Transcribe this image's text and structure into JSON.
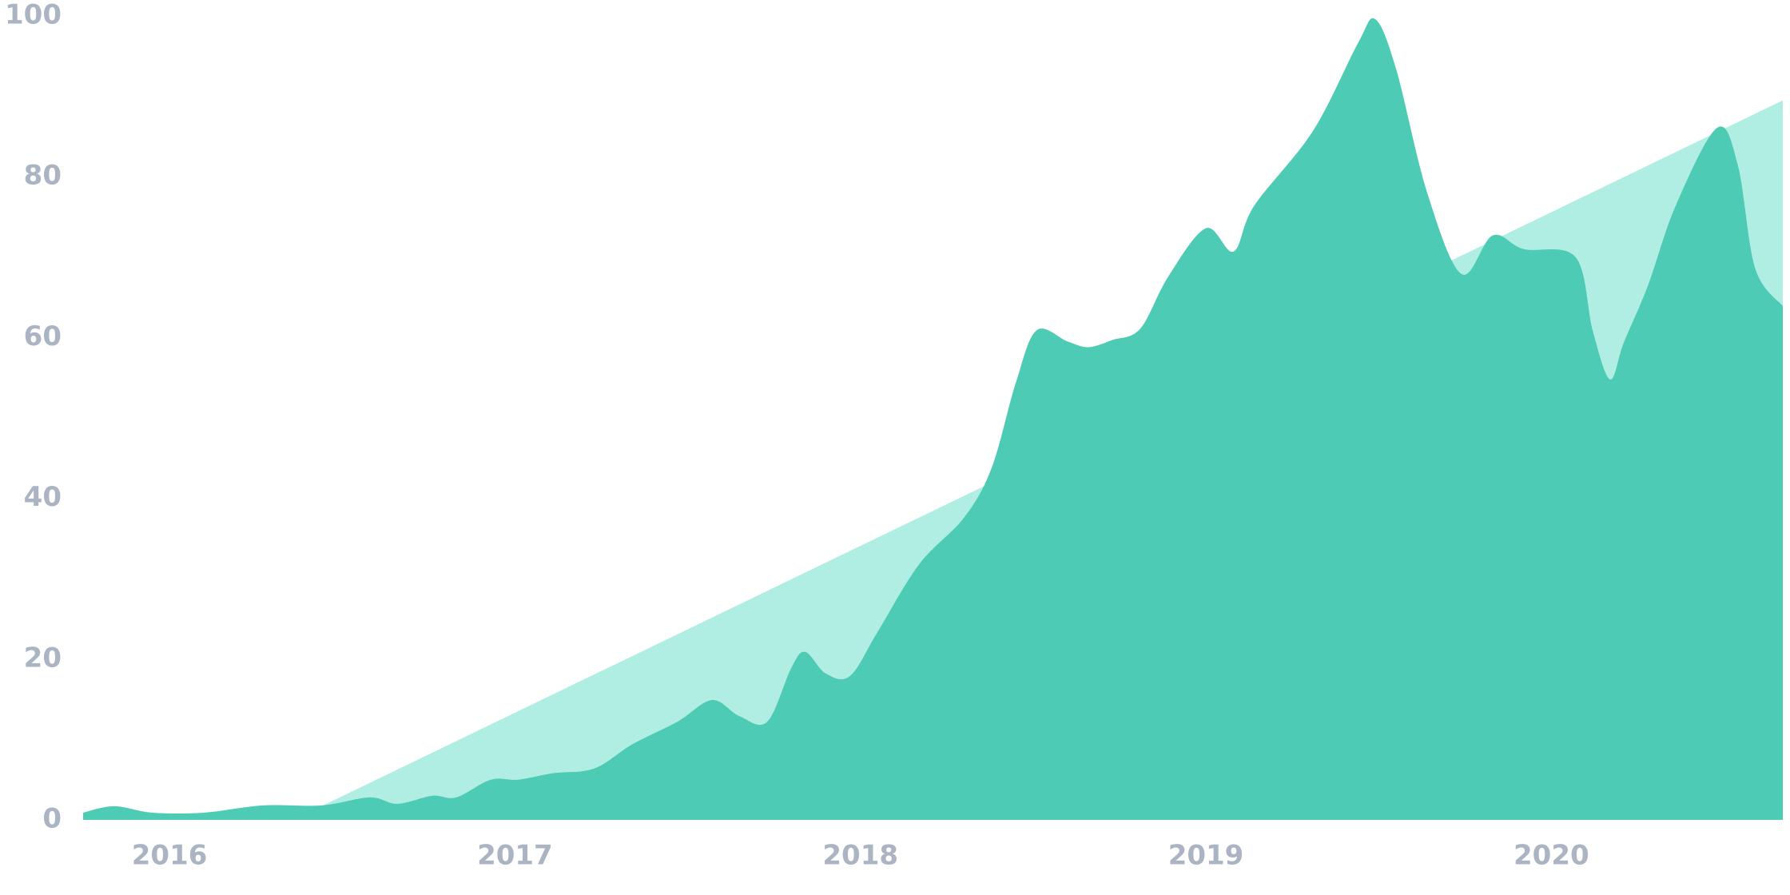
{
  "chart_data": {
    "type": "area",
    "xlim": [
      2015.75,
      2020.67
    ],
    "xticks": [
      2016,
      2017,
      2018,
      2019,
      2020
    ],
    "ylim": [
      0,
      100
    ],
    "yticks": [
      0,
      20,
      40,
      60,
      80,
      100
    ],
    "series": [
      {
        "color": "#b0ede2",
        "x": [
          2016.44,
          2020.67
        ],
        "values": [
          1.7,
          89.5
        ]
      },
      {
        "color": "#4ecbb4",
        "x": [
          2015.75,
          2015.84,
          2015.95,
          2016.1,
          2016.27,
          2016.44,
          2016.58,
          2016.66,
          2016.76,
          2016.83,
          2016.93,
          2017.01,
          2017.11,
          2017.23,
          2017.34,
          2017.47,
          2017.57,
          2017.65,
          2017.73,
          2017.8,
          2017.84,
          2017.9,
          2017.97,
          2018.05,
          2018.17,
          2018.3,
          2018.38,
          2018.45,
          2018.51,
          2018.6,
          2018.66,
          2018.73,
          2018.81,
          2018.89,
          2019.0,
          2019.08,
          2019.14,
          2019.31,
          2019.44,
          2019.49,
          2019.55,
          2019.64,
          2019.74,
          2019.83,
          2019.92,
          2020.07,
          2020.12,
          2020.17,
          2020.21,
          2020.28,
          2020.36,
          2020.48,
          2020.54,
          2020.59,
          2020.67
        ],
        "values": [
          0.9,
          1.7,
          0.9,
          0.9,
          1.8,
          1.8,
          2.8,
          2.0,
          3.0,
          2.8,
          5.0,
          5.0,
          5.8,
          6.4,
          9.4,
          12.2,
          14.9,
          12.9,
          12.2,
          18.9,
          20.9,
          18.2,
          17.9,
          23.4,
          31.8,
          37.6,
          43.8,
          54.4,
          60.9,
          59.5,
          58.8,
          59.7,
          61.1,
          67.5,
          73.6,
          70.7,
          76.4,
          85.7,
          96.6,
          99.6,
          93.5,
          78.1,
          67.9,
          72.7,
          71.0,
          70.0,
          60.8,
          54.8,
          59.4,
          66.5,
          76.4,
          86.1,
          81.4,
          68.6,
          63.9
        ]
      }
    ]
  }
}
